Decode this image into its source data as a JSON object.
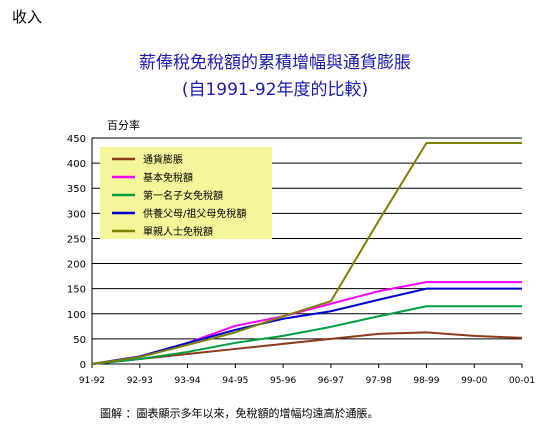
{
  "section_label": "收入",
  "chart_data": {
    "type": "line",
    "title": "薪俸稅免稅額的累積增幅與通貨膨脹",
    "subtitle": "(自1991-92年度的比較)",
    "ylabel": "百分率",
    "xlabel": "",
    "ylim": [
      0,
      450
    ],
    "yticks": [
      0,
      50,
      100,
      150,
      200,
      250,
      300,
      350,
      400,
      450
    ],
    "categories": [
      "91-92",
      "92-93",
      "93-94",
      "94-95",
      "95-96",
      "96-97",
      "97-98",
      "98-99",
      "99-00",
      "00-01"
    ],
    "grid": true,
    "legend_position": "top-left",
    "legend_background": "#f5f59a",
    "series": [
      {
        "name": "通貨膨脹",
        "color": "#8b3a1a",
        "values": [
          0,
          10,
          20,
          30,
          40,
          50,
          60,
          63,
          56,
          52
        ]
      },
      {
        "name": "基本免稅額",
        "color": "#ff00ff",
        "values": [
          0,
          15,
          42,
          76,
          95,
          120,
          145,
          163,
          163,
          163
        ]
      },
      {
        "name": "第一名子女免稅額",
        "color": "#00a040",
        "values": [
          0,
          10,
          24,
          42,
          56,
          74,
          95,
          115,
          115,
          115
        ]
      },
      {
        "name": "供養父母/祖父母免稅額",
        "color": "#0000cc",
        "values": [
          0,
          15,
          42,
          68,
          90,
          105,
          128,
          150,
          150,
          150
        ]
      },
      {
        "name": "單親人士免稅額",
        "color": "#808000",
        "values": [
          0,
          14,
          38,
          63,
          95,
          125,
          285,
          440,
          440,
          440
        ]
      }
    ],
    "note": "圖解 ：圖表顯示多年以來，免稅額的增幅均遠高於通脹。"
  }
}
